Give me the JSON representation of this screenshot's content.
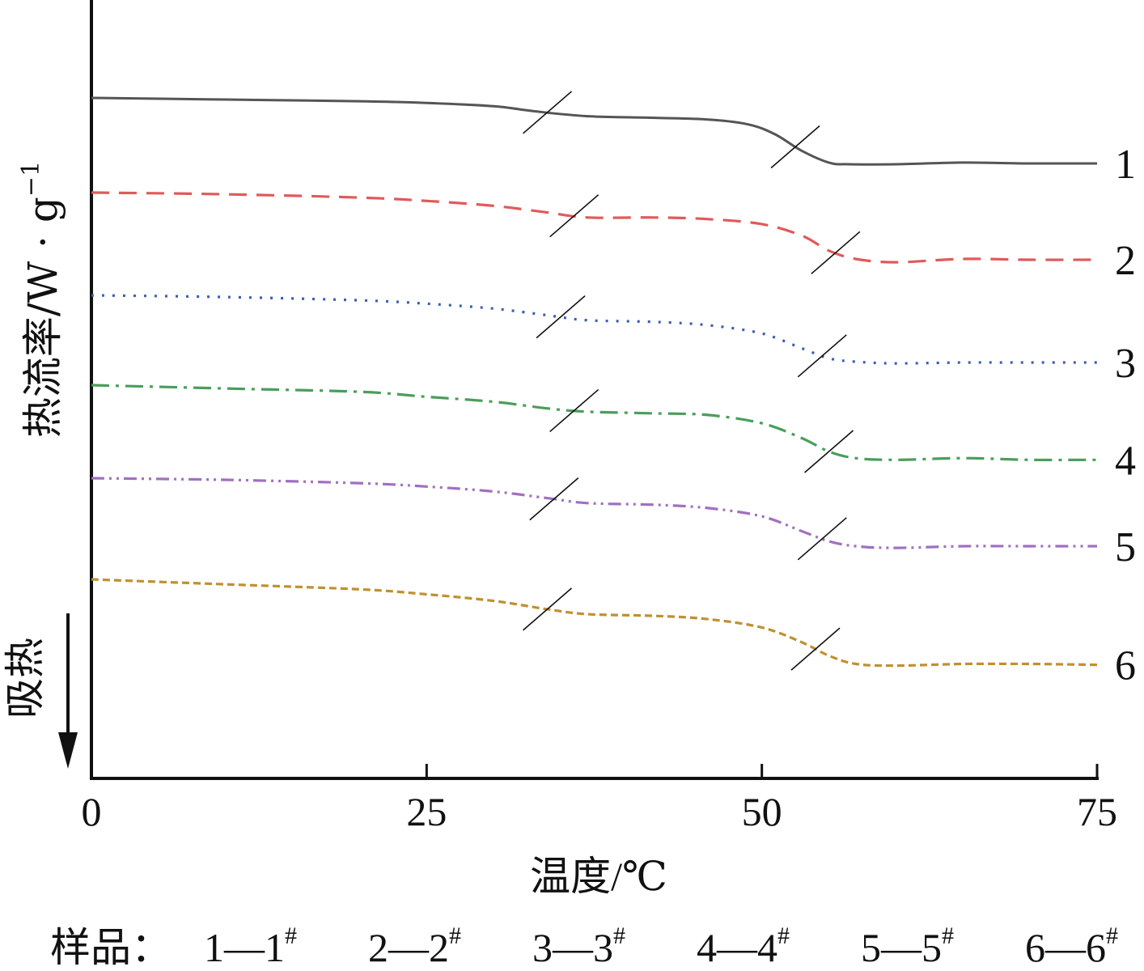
{
  "chart_data": {
    "type": "line",
    "xlabel": "温度/℃",
    "ylabel": "热流率/W · g",
    "ylabel_sup": "−1",
    "endo_label": "吸热",
    "xlim": [
      0,
      75
    ],
    "xticks": [
      0,
      25,
      50,
      75
    ],
    "yticks": [],
    "grid": false,
    "legend": {
      "prefix": "样品：",
      "items": [
        {
          "num": "1",
          "sample": "1",
          "mark": "#"
        },
        {
          "num": "2",
          "sample": "2",
          "mark": "#"
        },
        {
          "num": "3",
          "sample": "3",
          "mark": "#"
        },
        {
          "num": "4",
          "sample": "4",
          "mark": "#"
        },
        {
          "num": "5",
          "sample": "5",
          "mark": "#"
        },
        {
          "num": "6",
          "sample": "6",
          "mark": "#"
        }
      ]
    },
    "series": [
      {
        "label": "1",
        "color": "#555555",
        "dash": "solid",
        "points": [
          [
            0,
            0
          ],
          [
            10,
            -0.1
          ],
          [
            20,
            -0.2
          ],
          [
            25,
            -0.3
          ],
          [
            30,
            -0.5
          ],
          [
            33,
            -0.8
          ],
          [
            37,
            -1.1
          ],
          [
            42,
            -1.2
          ],
          [
            46,
            -1.3
          ],
          [
            49,
            -1.6
          ],
          [
            51,
            -2.2
          ],
          [
            53,
            -3.2
          ],
          [
            55,
            -3.9
          ],
          [
            56.5,
            -4.0
          ],
          [
            60,
            -4.0
          ],
          [
            65,
            -3.9
          ],
          [
            70,
            -3.95
          ],
          [
            75,
            -3.95
          ]
        ],
        "glass_marks": [
          34,
          52.5
        ]
      },
      {
        "label": "2",
        "color": "#e05a5a",
        "dash": "dashed",
        "points": [
          [
            0,
            0
          ],
          [
            10,
            -0.1
          ],
          [
            20,
            -0.3
          ],
          [
            25,
            -0.5
          ],
          [
            30,
            -0.8
          ],
          [
            34,
            -1.2
          ],
          [
            37,
            -1.5
          ],
          [
            42,
            -1.5
          ],
          [
            46,
            -1.6
          ],
          [
            50,
            -1.9
          ],
          [
            53,
            -2.6
          ],
          [
            55,
            -3.5
          ],
          [
            57,
            -4.0
          ],
          [
            60,
            -4.2
          ],
          [
            65,
            -4.0
          ],
          [
            70,
            -4.05
          ],
          [
            75,
            -4.05
          ]
        ],
        "glass_marks": [
          36,
          55.5
        ]
      },
      {
        "label": "3",
        "color": "#3a5fb0",
        "dash": "dotted",
        "points": [
          [
            0,
            0
          ],
          [
            10,
            -0.1
          ],
          [
            20,
            -0.3
          ],
          [
            25,
            -0.5
          ],
          [
            30,
            -0.8
          ],
          [
            34,
            -1.2
          ],
          [
            37,
            -1.5
          ],
          [
            42,
            -1.6
          ],
          [
            46,
            -1.8
          ],
          [
            50,
            -2.3
          ],
          [
            53,
            -3.2
          ],
          [
            55,
            -3.8
          ],
          [
            57,
            -4.0
          ],
          [
            60,
            -4.1
          ],
          [
            65,
            -4.05
          ],
          [
            70,
            -4.05
          ],
          [
            75,
            -4.05
          ]
        ],
        "glass_marks": [
          35,
          54.5
        ]
      },
      {
        "label": "4",
        "color": "#4a9e5c",
        "dash": "dashdot",
        "points": [
          [
            0,
            0
          ],
          [
            10,
            -0.2
          ],
          [
            20,
            -0.4
          ],
          [
            25,
            -0.7
          ],
          [
            30,
            -1.0
          ],
          [
            34,
            -1.4
          ],
          [
            37,
            -1.6
          ],
          [
            42,
            -1.7
          ],
          [
            46,
            -1.8
          ],
          [
            50,
            -2.3
          ],
          [
            53,
            -3.2
          ],
          [
            55,
            -4.0
          ],
          [
            57,
            -4.4
          ],
          [
            60,
            -4.5
          ],
          [
            65,
            -4.4
          ],
          [
            70,
            -4.5
          ],
          [
            75,
            -4.5
          ]
        ],
        "glass_marks": [
          36,
          55
        ]
      },
      {
        "label": "5",
        "color": "#a070c0",
        "dash": "dashdotdot",
        "points": [
          [
            0,
            0
          ],
          [
            10,
            -0.1
          ],
          [
            20,
            -0.3
          ],
          [
            25,
            -0.5
          ],
          [
            30,
            -0.8
          ],
          [
            34,
            -1.2
          ],
          [
            37,
            -1.5
          ],
          [
            42,
            -1.6
          ],
          [
            46,
            -1.8
          ],
          [
            50,
            -2.3
          ],
          [
            53,
            -3.2
          ],
          [
            55,
            -3.8
          ],
          [
            57,
            -4.1
          ],
          [
            60,
            -4.2
          ],
          [
            65,
            -4.1
          ],
          [
            70,
            -4.1
          ],
          [
            75,
            -4.1
          ]
        ],
        "glass_marks": [
          34.5,
          54.5
        ]
      },
      {
        "label": "6",
        "color": "#c09030",
        "dash": "fine",
        "points": [
          [
            0,
            0
          ],
          [
            10,
            -0.3
          ],
          [
            20,
            -0.6
          ],
          [
            25,
            -0.9
          ],
          [
            30,
            -1.3
          ],
          [
            34,
            -1.8
          ],
          [
            37,
            -2.1
          ],
          [
            42,
            -2.2
          ],
          [
            46,
            -2.4
          ],
          [
            50,
            -2.9
          ],
          [
            53,
            -3.8
          ],
          [
            55,
            -4.6
          ],
          [
            57,
            -5.1
          ],
          [
            60,
            -5.2
          ],
          [
            65,
            -5.1
          ],
          [
            70,
            -5.1
          ],
          [
            75,
            -5.15
          ]
        ],
        "glass_marks": [
          34,
          54
        ]
      }
    ]
  }
}
